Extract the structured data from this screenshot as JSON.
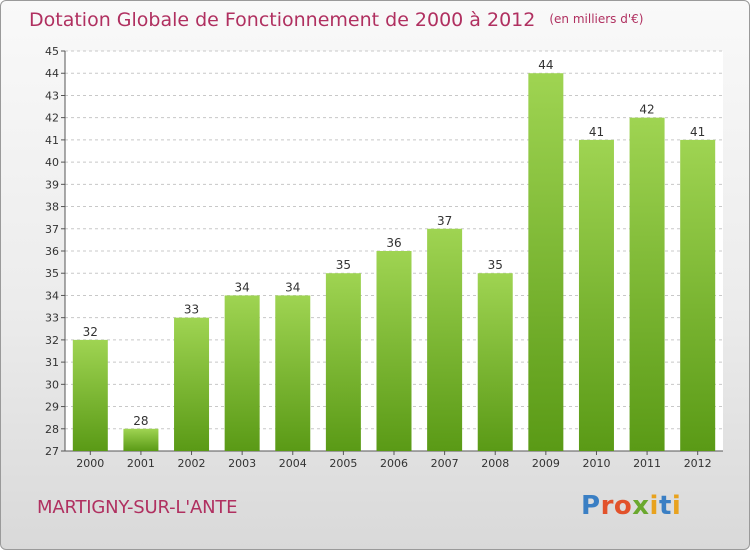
{
  "title": "Dotation Globale de Fonctionnement de 2000 à 2012",
  "unit_label": "(en milliers d'€)",
  "commune": "MARTIGNY-SUR-L'ANTE",
  "logo": {
    "text": "Proxiti",
    "letters": [
      {
        "ch": "P",
        "color": "#3a7fc4"
      },
      {
        "ch": "r",
        "color": "#e2522b"
      },
      {
        "ch": "o",
        "color": "#e2522b"
      },
      {
        "ch": "x",
        "color": "#6aa82e"
      },
      {
        "ch": "i",
        "color": "#e8a21e"
      },
      {
        "ch": "t",
        "color": "#3a7fc4"
      },
      {
        "ch": "i",
        "color": "#e8a21e"
      }
    ]
  },
  "colors": {
    "bar_top": "#9fd452",
    "bar_bottom": "#5a9a16",
    "accent": "#b03060"
  },
  "chart_data": {
    "type": "bar",
    "categories": [
      "2000",
      "2001",
      "2002",
      "2003",
      "2004",
      "2005",
      "2006",
      "2007",
      "2008",
      "2009",
      "2010",
      "2011",
      "2012"
    ],
    "values": [
      32,
      28,
      33,
      34,
      34,
      35,
      36,
      37,
      35,
      44,
      41,
      42,
      41
    ],
    "data_labels": [
      "32",
      "28",
      "33",
      "34",
      "34",
      "35",
      "36",
      "37",
      "35",
      "44",
      "41",
      "42",
      "41"
    ],
    "ylim": [
      27,
      45
    ],
    "yticks": [
      "27",
      "28",
      "29",
      "30",
      "31",
      "32",
      "33",
      "34",
      "35",
      "36",
      "37",
      "38",
      "39",
      "40",
      "41",
      "42",
      "43",
      "44",
      "45"
    ],
    "grid": "y-dashed",
    "legend": "none"
  }
}
